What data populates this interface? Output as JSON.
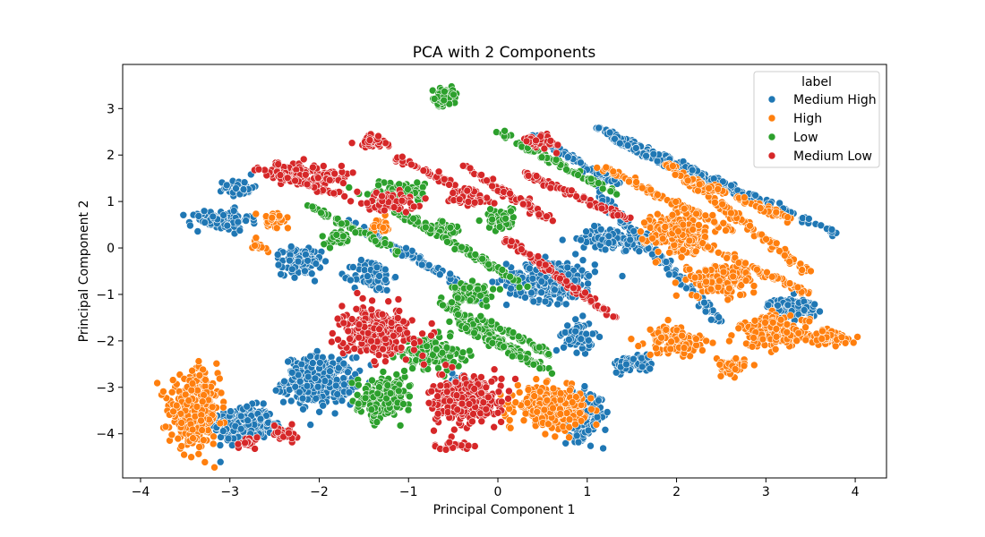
{
  "chart_data": {
    "type": "scatter",
    "title": "PCA with 2 Components",
    "xlabel": "Principal Component 1",
    "ylabel": "Principal Component 2",
    "xlim": [
      -4.2,
      4.35
    ],
    "ylim": [
      -4.95,
      3.95
    ],
    "xticks": [
      -4,
      -3,
      -2,
      -1,
      0,
      1,
      2,
      3,
      4
    ],
    "yticks": [
      3,
      2,
      1,
      0,
      -1,
      -2,
      -3,
      -4
    ],
    "grid": false,
    "legend": {
      "title": "label",
      "position": "top-right"
    },
    "series": [
      {
        "name": "Medium High",
        "color": "#1f77b4",
        "clusters": [
          {
            "center": [
              -2.85,
              -3.8
            ],
            "spread": [
              0.3,
              0.35
            ],
            "count": 320
          },
          {
            "center": [
              -2.0,
              -2.85
            ],
            "spread": [
              0.35,
              0.45
            ],
            "count": 320
          },
          {
            "center": [
              -2.2,
              -0.3
            ],
            "spread": [
              0.2,
              0.25
            ],
            "count": 140
          },
          {
            "center": [
              -3.1,
              0.6
            ],
            "spread": [
              0.3,
              0.2
            ],
            "count": 100
          },
          {
            "center": [
              -2.9,
              1.3
            ],
            "spread": [
              0.15,
              0.15
            ],
            "count": 60
          },
          {
            "center": [
              -1.4,
              -0.6
            ],
            "spread": [
              0.2,
              0.3
            ],
            "count": 90
          },
          {
            "center": [
              0.6,
              -0.7
            ],
            "spread": [
              0.45,
              0.4
            ],
            "count": 260
          },
          {
            "center": [
              0.95,
              -3.6
            ],
            "spread": [
              0.2,
              0.45
            ],
            "count": 180
          },
          {
            "center": [
              0.9,
              -1.9
            ],
            "spread": [
              0.15,
              0.3
            ],
            "count": 70
          },
          {
            "center": [
              1.5,
              -2.5
            ],
            "spread": [
              0.2,
              0.15
            ],
            "count": 80
          },
          {
            "center": [
              1.3,
              0.2
            ],
            "spread": [
              0.35,
              0.2
            ],
            "count": 120
          },
          {
            "center": [
              3.3,
              -1.3
            ],
            "spread": [
              0.25,
              0.2
            ],
            "count": 130
          },
          {
            "center": [
              -0.4,
              -2.9
            ],
            "spread": [
              0.1,
              0.2
            ],
            "count": 30
          }
        ],
        "lines": [
          {
            "from": [
              -1.7,
              0.6
            ],
            "to": [
              -0.2,
              -1.0
            ],
            "count": 110
          },
          {
            "from": [
              1.1,
              2.6
            ],
            "to": [
              2.9,
              1.0
            ],
            "count": 140
          },
          {
            "from": [
              1.3,
              2.3
            ],
            "to": [
              2.5,
              1.3
            ],
            "count": 90
          },
          {
            "from": [
              0.4,
              2.4
            ],
            "to": [
              1.4,
              1.3
            ],
            "count": 80
          },
          {
            "from": [
              0.9,
              1.6
            ],
            "to": [
              2.5,
              -1.6
            ],
            "count": 110
          },
          {
            "from": [
              1.7,
              2.1
            ],
            "to": [
              3.8,
              0.3
            ],
            "count": 90
          }
        ]
      },
      {
        "name": "High",
        "color": "#ff7f0e",
        "clusters": [
          {
            "center": [
              -3.4,
              -3.5
            ],
            "spread": [
              0.25,
              0.65
            ],
            "count": 420
          },
          {
            "center": [
              0.6,
              -3.4
            ],
            "spread": [
              0.35,
              0.35
            ],
            "count": 320
          },
          {
            "center": [
              2.0,
              0.3
            ],
            "spread": [
              0.3,
              0.4
            ],
            "count": 240
          },
          {
            "center": [
              3.1,
              -1.8
            ],
            "spread": [
              0.35,
              0.3
            ],
            "count": 200
          },
          {
            "center": [
              3.7,
              -1.95
            ],
            "spread": [
              0.2,
              0.12
            ],
            "count": 70
          },
          {
            "center": [
              2.6,
              -2.55
            ],
            "spread": [
              0.15,
              0.15
            ],
            "count": 60
          },
          {
            "center": [
              2.0,
              -2.0
            ],
            "spread": [
              0.3,
              0.3
            ],
            "count": 100
          },
          {
            "center": [
              2.5,
              -0.7
            ],
            "spread": [
              0.35,
              0.3
            ],
            "count": 150
          },
          {
            "center": [
              -2.7,
              0.05
            ],
            "spread": [
              0.1,
              0.1
            ],
            "count": 15
          },
          {
            "center": [
              -2.5,
              0.6
            ],
            "spread": [
              0.15,
              0.15
            ],
            "count": 30
          },
          {
            "center": [
              -1.3,
              0.5
            ],
            "spread": [
              0.1,
              0.15
            ],
            "count": 20
          }
        ],
        "lines": [
          {
            "from": [
              1.9,
              1.8
            ],
            "to": [
              3.5,
              -0.55
            ],
            "count": 140
          },
          {
            "from": [
              2.0,
              1.6
            ],
            "to": [
              3.3,
              0.6
            ],
            "count": 90
          },
          {
            "from": [
              1.1,
              1.8
            ],
            "to": [
              2.6,
              0.4
            ],
            "count": 90
          },
          {
            "from": [
              1.8,
              0.5
            ],
            "to": [
              3.5,
              -1.0
            ],
            "count": 90
          }
        ]
      },
      {
        "name": "Low",
        "color": "#2ca02c",
        "clusters": [
          {
            "center": [
              -1.3,
              -3.2
            ],
            "spread": [
              0.25,
              0.35
            ],
            "count": 260
          },
          {
            "center": [
              -0.6,
              3.25
            ],
            "spread": [
              0.12,
              0.15
            ],
            "count": 90
          },
          {
            "center": [
              -0.7,
              -2.3
            ],
            "spread": [
              0.3,
              0.3
            ],
            "count": 150
          },
          {
            "center": [
              -0.3,
              -1.0
            ],
            "spread": [
              0.2,
              0.2
            ],
            "count": 90
          },
          {
            "center": [
              0.05,
              0.6
            ],
            "spread": [
              0.15,
              0.2
            ],
            "count": 70
          },
          {
            "center": [
              -1.8,
              0.2
            ],
            "spread": [
              0.15,
              0.15
            ],
            "count": 40
          },
          {
            "center": [
              -1.1,
              1.2
            ],
            "spread": [
              0.3,
              0.2
            ],
            "count": 80
          },
          {
            "center": [
              -0.6,
              0.4
            ],
            "spread": [
              0.15,
              0.15
            ],
            "count": 40
          }
        ],
        "lines": [
          {
            "from": [
              -1.3,
              1.0
            ],
            "to": [
              0.3,
              -0.8
            ],
            "count": 110
          },
          {
            "from": [
              -0.6,
              -1.2
            ],
            "to": [
              0.5,
              -2.6
            ],
            "count": 110
          },
          {
            "from": [
              0.0,
              2.5
            ],
            "to": [
              1.3,
              1.2
            ],
            "count": 80
          },
          {
            "from": [
              -2.1,
              0.9
            ],
            "to": [
              -1.1,
              -0.1
            ],
            "count": 60
          },
          {
            "from": [
              -0.2,
              -1.5
            ],
            "to": [
              0.6,
              -2.3
            ],
            "count": 50
          },
          {
            "from": [
              -0.5,
              -1.6
            ],
            "to": [
              0.6,
              -2.7
            ],
            "count": 60
          }
        ]
      },
      {
        "name": "Medium Low",
        "color": "#d62728",
        "clusters": [
          {
            "center": [
              -1.35,
              -1.8
            ],
            "spread": [
              0.35,
              0.45
            ],
            "count": 320
          },
          {
            "center": [
              -0.35,
              -3.3
            ],
            "spread": [
              0.35,
              0.45
            ],
            "count": 300
          },
          {
            "center": [
              -0.3,
              1.1
            ],
            "spread": [
              0.2,
              0.15
            ],
            "count": 70
          },
          {
            "center": [
              -1.2,
              1.0
            ],
            "spread": [
              0.25,
              0.2
            ],
            "count": 80
          },
          {
            "center": [
              -2.3,
              1.65
            ],
            "spread": [
              0.25,
              0.15
            ],
            "count": 80
          },
          {
            "center": [
              -1.9,
              1.55
            ],
            "spread": [
              0.2,
              0.15
            ],
            "count": 50
          },
          {
            "center": [
              -1.4,
              2.3
            ],
            "spread": [
              0.15,
              0.15
            ],
            "count": 50
          },
          {
            "center": [
              0.5,
              2.3
            ],
            "spread": [
              0.15,
              0.15
            ],
            "count": 40
          },
          {
            "center": [
              -2.4,
              -4.0
            ],
            "spread": [
              0.15,
              0.15
            ],
            "count": 25
          },
          {
            "center": [
              -2.8,
              -4.2
            ],
            "spread": [
              0.12,
              0.1
            ],
            "count": 20
          },
          {
            "center": [
              -0.45,
              -4.25
            ],
            "spread": [
              0.2,
              0.08
            ],
            "count": 20
          }
        ],
        "lines": [
          {
            "from": [
              -0.4,
              1.8
            ],
            "to": [
              0.6,
              0.6
            ],
            "count": 80
          },
          {
            "from": [
              0.1,
              0.2
            ],
            "to": [
              1.3,
              -1.5
            ],
            "count": 110
          },
          {
            "from": [
              0.3,
              1.6
            ],
            "to": [
              1.5,
              0.6
            ],
            "count": 80
          },
          {
            "from": [
              -1.2,
              2.0
            ],
            "to": [
              -0.3,
              1.2
            ],
            "count": 50
          },
          {
            "from": [
              -2.7,
              1.7
            ],
            "to": [
              -1.7,
              1.1
            ],
            "count": 60
          }
        ]
      }
    ]
  }
}
